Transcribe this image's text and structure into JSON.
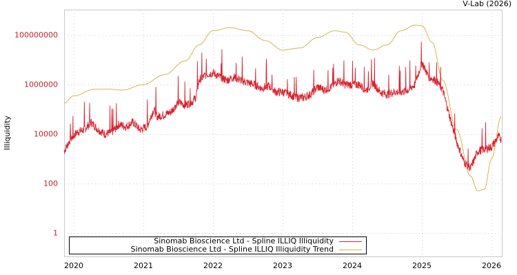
{
  "credit": "V-Lab (2026)",
  "colors": {
    "illiquidity": "#d7222e",
    "trend": "#d9b24a",
    "grid": "#c8c8c8",
    "axis_tick_label": "#c0232c"
  },
  "legend": {
    "items": [
      {
        "label": "Sinomab Bioscience Ltd - Spline ILLIQ Illiquidity",
        "color": "#d7222e"
      },
      {
        "label": "Sinomab Bioscience Ltd - Spline ILLIQ Illiquidity Trend",
        "color": "#d9b24a"
      }
    ]
  },
  "chart_data": {
    "type": "line",
    "title": "",
    "xlabel": "",
    "ylabel": "Illiquidity",
    "yscale": "log",
    "ylim": [
      0.3,
      400000000
    ],
    "xlim": [
      2019.86,
      2026.14
    ],
    "y_ticks": [
      "100000000",
      "1000000",
      "10000",
      "100",
      "1"
    ],
    "x_ticks": [
      "2020",
      "2021",
      "2022",
      "2023",
      "2024",
      "2025",
      "2026"
    ],
    "grid": true,
    "legend_position": "bottom-inside",
    "series": [
      {
        "name": "Sinomab Bioscience Ltd - Spline ILLIQ Illiquidity",
        "x": [
          2019.86,
          2019.95,
          2020.05,
          2020.15,
          2020.25,
          2020.35,
          2020.45,
          2020.55,
          2020.65,
          2020.75,
          2020.85,
          2020.95,
          2021.05,
          2021.15,
          2021.2,
          2021.3,
          2021.4,
          2021.5,
          2021.6,
          2021.7,
          2021.75,
          2021.8,
          2021.9,
          2022.0,
          2022.1,
          2022.2,
          2022.3,
          2022.4,
          2022.5,
          2022.6,
          2022.7,
          2022.8,
          2022.9,
          2023.0,
          2023.1,
          2023.2,
          2023.3,
          2023.4,
          2023.5,
          2023.6,
          2023.7,
          2023.8,
          2023.9,
          2024.0,
          2024.1,
          2024.2,
          2024.3,
          2024.4,
          2024.5,
          2024.6,
          2024.7,
          2024.8,
          2024.9,
          2025.0,
          2025.1,
          2025.2,
          2025.3,
          2025.4,
          2025.5,
          2025.6,
          2025.7,
          2025.8,
          2025.9,
          2026.0,
          2026.1,
          2026.14
        ],
        "values": [
          2000,
          6000,
          12000,
          15000,
          30000,
          15000,
          10000,
          12000,
          25000,
          20000,
          30000,
          15000,
          20000,
          100000,
          50000,
          60000,
          80000,
          200000,
          150000,
          200000,
          300000,
          1500000,
          2500000,
          3000000,
          2000000,
          1500000,
          2000000,
          1500000,
          1200000,
          1000000,
          700000,
          900000,
          500000,
          500000,
          400000,
          300000,
          300000,
          400000,
          800000,
          600000,
          800000,
          1500000,
          1000000,
          1000000,
          1000000,
          600000,
          1200000,
          500000,
          400000,
          500000,
          500000,
          600000,
          1000000,
          8000000,
          2000000,
          1500000,
          600000,
          50000,
          5000,
          800,
          400,
          2000,
          2500,
          3000,
          8000,
          6000
        ]
      },
      {
        "name": "Sinomab Bioscience Ltd - Spline ILLIQ Illiquidity Trend",
        "x": [
          2019.86,
          2020.0,
          2020.3,
          2020.5,
          2020.7,
          2021.0,
          2021.3,
          2021.6,
          2021.8,
          2022.0,
          2022.25,
          2022.5,
          2022.75,
          2023.0,
          2023.25,
          2023.5,
          2023.75,
          2023.9,
          2024.1,
          2024.3,
          2024.5,
          2024.7,
          2024.9,
          2025.0,
          2025.15,
          2025.3,
          2025.5,
          2025.7,
          2025.8,
          2025.9,
          2026.0,
          2026.14
        ],
        "values": [
          180000,
          350000,
          650000,
          650000,
          600000,
          1000000,
          2500000,
          9000000,
          40000000,
          150000000,
          200000000,
          150000000,
          60000000,
          25000000,
          30000000,
          80000000,
          150000000,
          130000000,
          40000000,
          25000000,
          40000000,
          150000000,
          250000000,
          240000000,
          50000000,
          1500000,
          15000,
          200,
          50,
          60,
          1000,
          50000
        ]
      }
    ]
  }
}
